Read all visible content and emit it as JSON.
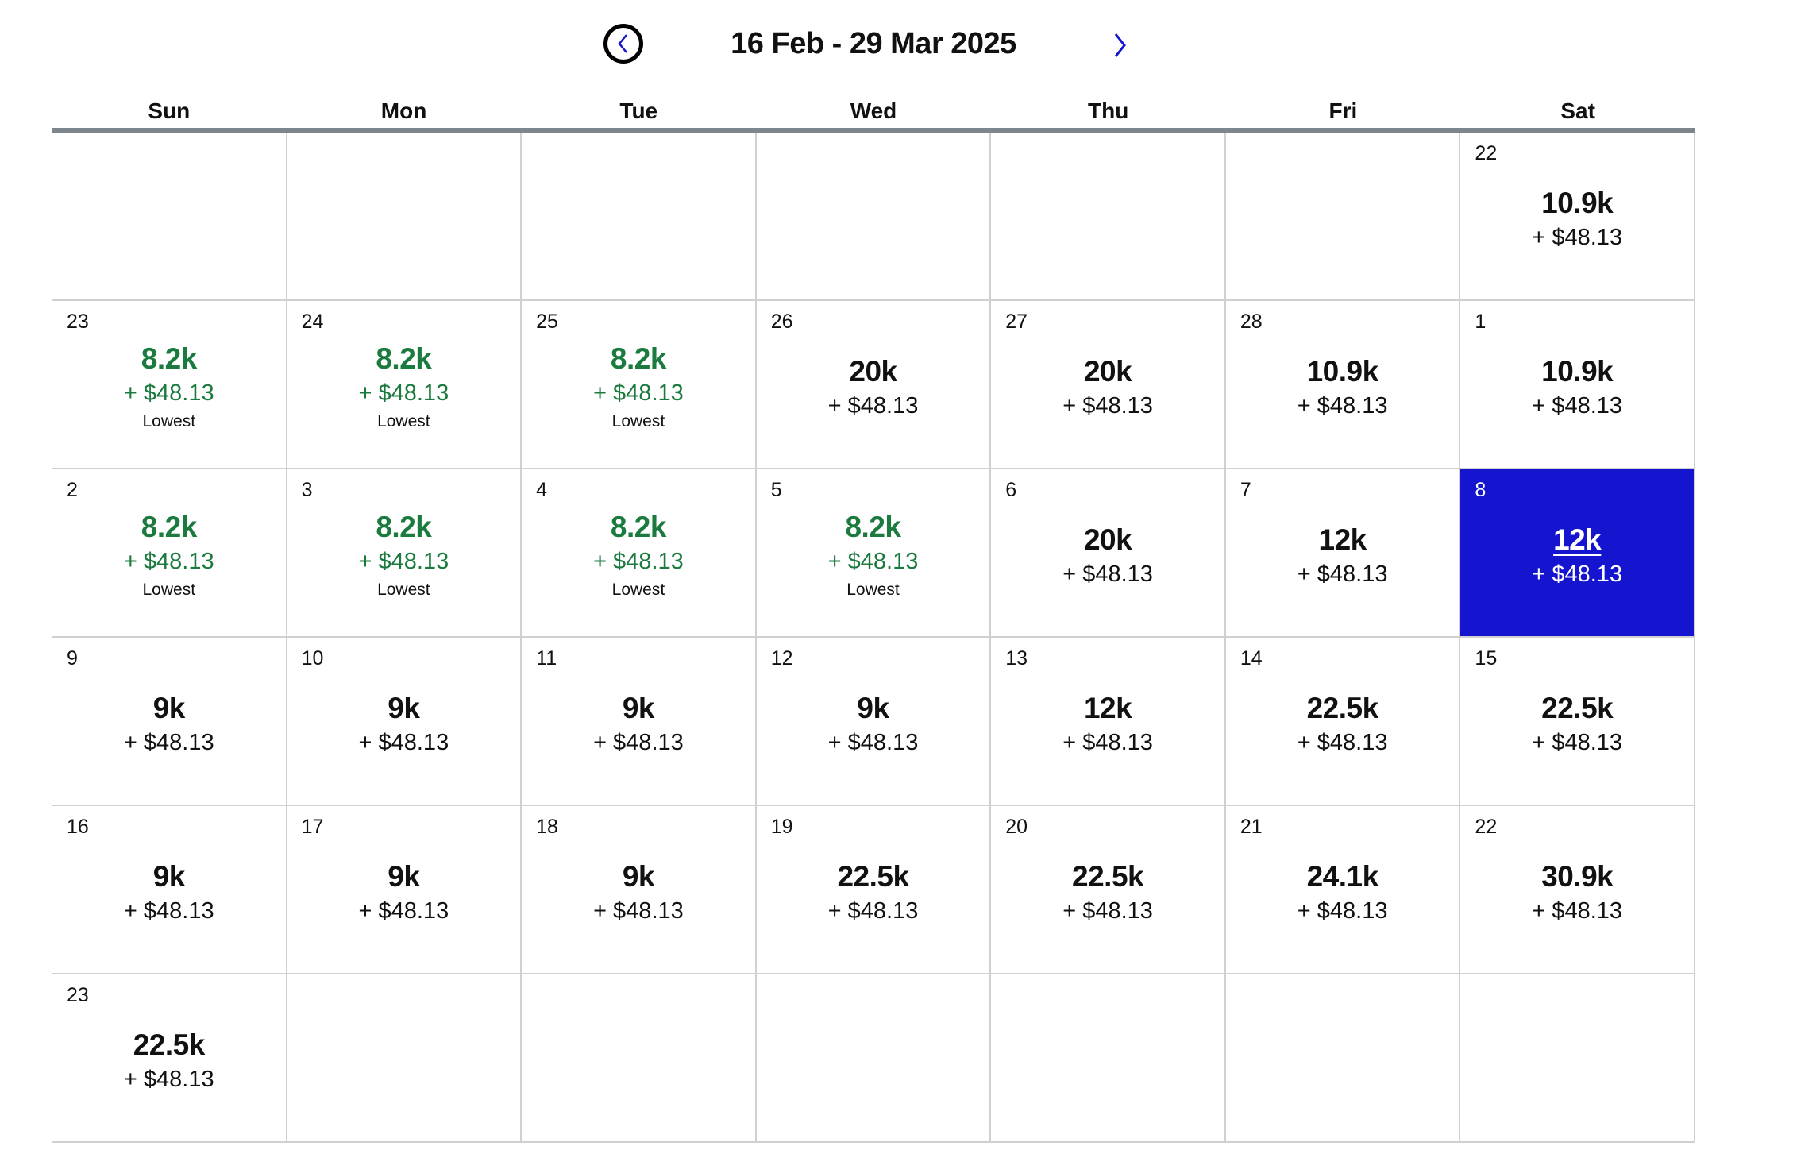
{
  "header": {
    "title": "16 Feb - 29 Mar 2025",
    "prev_icon": "chevron-left-circle-icon",
    "next_icon": "chevron-right-icon"
  },
  "colors": {
    "selected": "#1515d0",
    "lowest": "#1b7a3e",
    "accent": "#1515d0"
  },
  "days_of_week": [
    "Sun",
    "Mon",
    "Tue",
    "Wed",
    "Thu",
    "Fri",
    "Sat"
  ],
  "weeks": [
    [
      null,
      null,
      null,
      null,
      null,
      null,
      {
        "day": "22",
        "price": "10.9k",
        "fee": "+ $48.13"
      }
    ],
    [
      {
        "day": "23",
        "price": "8.2k",
        "fee": "+ $48.13",
        "note": "Lowest"
      },
      {
        "day": "24",
        "price": "8.2k",
        "fee": "+ $48.13",
        "note": "Lowest"
      },
      {
        "day": "25",
        "price": "8.2k",
        "fee": "+ $48.13",
        "note": "Lowest"
      },
      {
        "day": "26",
        "price": "20k",
        "fee": "+ $48.13"
      },
      {
        "day": "27",
        "price": "20k",
        "fee": "+ $48.13"
      },
      {
        "day": "28",
        "price": "10.9k",
        "fee": "+ $48.13"
      },
      {
        "day": "1",
        "price": "10.9k",
        "fee": "+ $48.13"
      }
    ],
    [
      {
        "day": "2",
        "price": "8.2k",
        "fee": "+ $48.13",
        "note": "Lowest"
      },
      {
        "day": "3",
        "price": "8.2k",
        "fee": "+ $48.13",
        "note": "Lowest"
      },
      {
        "day": "4",
        "price": "8.2k",
        "fee": "+ $48.13",
        "note": "Lowest"
      },
      {
        "day": "5",
        "price": "8.2k",
        "fee": "+ $48.13",
        "note": "Lowest"
      },
      {
        "day": "6",
        "price": "20k",
        "fee": "+ $48.13"
      },
      {
        "day": "7",
        "price": "12k",
        "fee": "+ $48.13"
      },
      {
        "day": "8",
        "price": "12k",
        "fee": "+ $48.13",
        "selected": true
      }
    ],
    [
      {
        "day": "9",
        "price": "9k",
        "fee": "+ $48.13"
      },
      {
        "day": "10",
        "price": "9k",
        "fee": "+ $48.13"
      },
      {
        "day": "11",
        "price": "9k",
        "fee": "+ $48.13"
      },
      {
        "day": "12",
        "price": "9k",
        "fee": "+ $48.13"
      },
      {
        "day": "13",
        "price": "12k",
        "fee": "+ $48.13"
      },
      {
        "day": "14",
        "price": "22.5k",
        "fee": "+ $48.13"
      },
      {
        "day": "15",
        "price": "22.5k",
        "fee": "+ $48.13"
      }
    ],
    [
      {
        "day": "16",
        "price": "9k",
        "fee": "+ $48.13"
      },
      {
        "day": "17",
        "price": "9k",
        "fee": "+ $48.13"
      },
      {
        "day": "18",
        "price": "9k",
        "fee": "+ $48.13"
      },
      {
        "day": "19",
        "price": "22.5k",
        "fee": "+ $48.13"
      },
      {
        "day": "20",
        "price": "22.5k",
        "fee": "+ $48.13"
      },
      {
        "day": "21",
        "price": "24.1k",
        "fee": "+ $48.13"
      },
      {
        "day": "22",
        "price": "30.9k",
        "fee": "+ $48.13"
      }
    ],
    [
      {
        "day": "23",
        "price": "22.5k",
        "fee": "+ $48.13"
      },
      null,
      null,
      null,
      null,
      null,
      null
    ]
  ]
}
